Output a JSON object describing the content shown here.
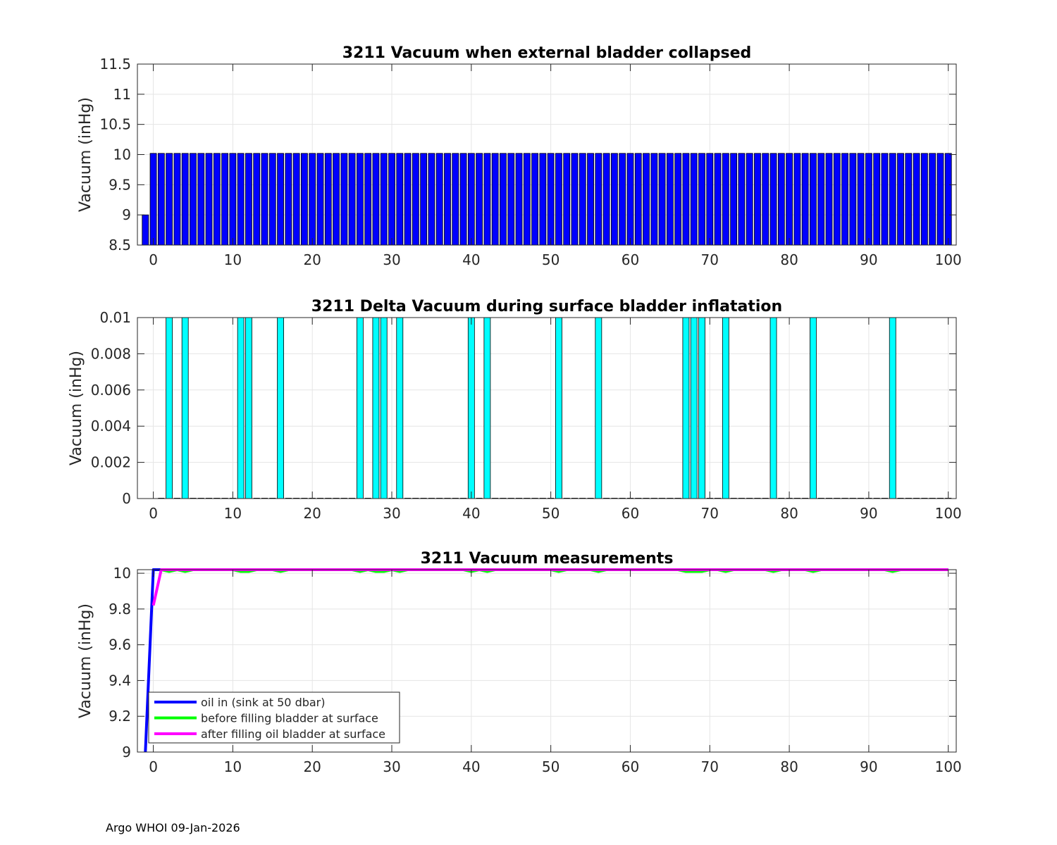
{
  "footer": "Argo WHOI 09-Jan-2026",
  "colors": {
    "blue": "#0000ff",
    "cyan": "#00ffff",
    "green": "#00ff00",
    "magenta": "#ff00ff",
    "grid": "#e5e5e5",
    "axis": "#262626"
  },
  "chart_data": [
    {
      "type": "bar",
      "title": "3211 Vacuum when external bladder collapsed",
      "ylabel": "Vacuum (inHg)",
      "xlabel": "",
      "xlim": [
        -2,
        101
      ],
      "ylim": [
        8.5,
        11.5
      ],
      "xticks": [
        0,
        10,
        20,
        30,
        40,
        50,
        60,
        70,
        80,
        90,
        100
      ],
      "yticks": [
        8.5,
        9,
        9.5,
        10,
        10.5,
        11,
        11.5
      ],
      "ytick_labels": [
        "8.5",
        "9",
        "9.5",
        "10",
        "10.5",
        "11",
        "11.5"
      ],
      "grid": true,
      "bar_color": "#0000ff",
      "x_start": -1,
      "values": [
        9,
        10.02,
        10.02,
        10.02,
        10.02,
        10.02,
        10.02,
        10.02,
        10.02,
        10.02,
        10.02,
        10.02,
        10.02,
        10.02,
        10.02,
        10.02,
        10.02,
        10.02,
        10.02,
        10.02,
        10.02,
        10.02,
        10.02,
        10.02,
        10.02,
        10.02,
        10.02,
        10.02,
        10.02,
        10.02,
        10.02,
        10.02,
        10.02,
        10.02,
        10.02,
        10.02,
        10.02,
        10.02,
        10.02,
        10.02,
        10.02,
        10.02,
        10.02,
        10.02,
        10.02,
        10.02,
        10.02,
        10.02,
        10.02,
        10.02,
        10.02,
        10.02,
        10.02,
        10.02,
        10.02,
        10.02,
        10.02,
        10.02,
        10.02,
        10.02,
        10.02,
        10.02,
        10.02,
        10.02,
        10.02,
        10.02,
        10.02,
        10.02,
        10.02,
        10.02,
        10.02,
        10.02,
        10.02,
        10.02,
        10.02,
        10.02,
        10.02,
        10.02,
        10.02,
        10.02,
        10.02,
        10.02,
        10.02,
        10.02,
        10.02,
        10.02,
        10.02,
        10.02,
        10.02,
        10.02,
        10.02,
        10.02,
        10.02,
        10.02,
        10.02,
        10.02,
        10.02,
        10.02,
        10.02,
        10.02,
        10.02,
        10.02
      ]
    },
    {
      "type": "bar",
      "title": "3211 Delta Vacuum during surface bladder inflatation",
      "ylabel": "Vacuum (inHg)",
      "xlabel": "",
      "xlim": [
        -2,
        101
      ],
      "ylim": [
        0,
        0.01
      ],
      "xticks": [
        0,
        10,
        20,
        30,
        40,
        50,
        60,
        70,
        80,
        90,
        100
      ],
      "yticks": [
        0,
        0.002,
        0.004,
        0.006,
        0.008,
        0.01
      ],
      "ytick_labels": [
        "0",
        "0.002",
        "0.004",
        "0.006",
        "0.008",
        "0.01"
      ],
      "grid": true,
      "bar_color": "#00ffff",
      "x_start": 1,
      "x_end": 100,
      "nonzero_x": [
        2,
        4,
        11,
        12,
        16,
        26,
        28,
        29,
        31,
        40,
        42,
        51,
        56,
        67,
        68,
        69,
        72,
        78,
        83,
        93
      ],
      "nonzero_value": 0.01
    },
    {
      "type": "line",
      "title": "3211 Vacuum measurements",
      "ylabel": "Vacuum (inHg)",
      "xlabel": "",
      "xlim": [
        -2,
        101
      ],
      "ylim": [
        9,
        10.02
      ],
      "xticks": [
        0,
        10,
        20,
        30,
        40,
        50,
        60,
        70,
        80,
        90,
        100
      ],
      "yticks": [
        9,
        9.2,
        9.4,
        9.6,
        9.8,
        10
      ],
      "ytick_labels": [
        "9",
        "9.2",
        "9.4",
        "9.6",
        "9.8",
        "10"
      ],
      "grid": true,
      "legend_position": "bottom-left",
      "series": [
        {
          "name": "oil in (sink at 50 dbar)",
          "color": "#0000ff",
          "x": [
            -1,
            0,
            1,
            100
          ],
          "y": [
            9,
            10.02,
            10.02,
            10.02
          ]
        },
        {
          "name": "before filling bladder at surface",
          "color": "#00ff00",
          "x_start": 1,
          "x_end": 100,
          "base": 10.02,
          "dip_x": [
            2,
            4,
            11,
            12,
            16,
            26,
            28,
            29,
            31,
            40,
            42,
            51,
            56,
            67,
            68,
            69,
            72,
            78,
            83,
            93
          ],
          "dip_value": 10.01
        },
        {
          "name": "after filling oil bladder at surface",
          "color": "#ff00ff",
          "x": [
            0,
            1,
            100
          ],
          "y": [
            9.82,
            10.02,
            10.02
          ]
        }
      ]
    }
  ]
}
